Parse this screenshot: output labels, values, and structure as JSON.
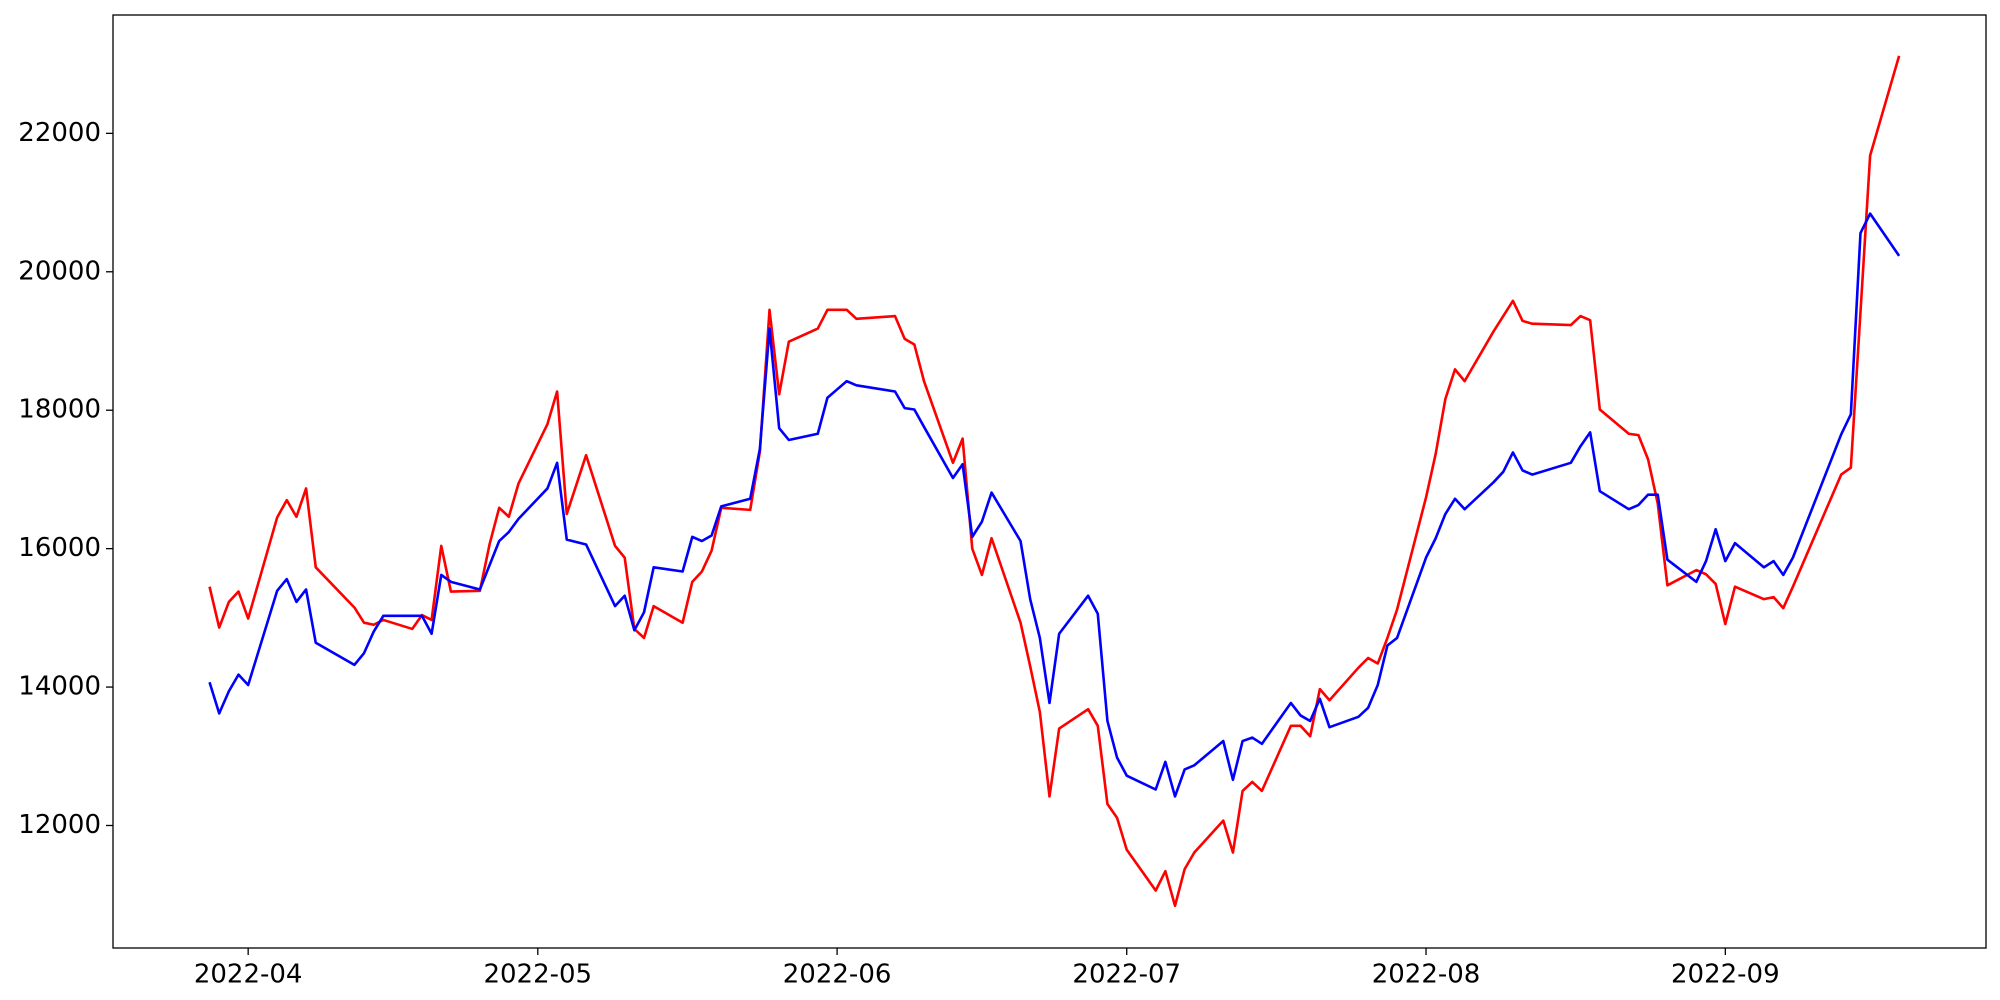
{
  "chart_data": {
    "type": "line",
    "x": [
      "2022-03-28",
      "2022-03-29",
      "2022-03-30",
      "2022-03-31",
      "2022-04-01",
      "2022-04-04",
      "2022-04-05",
      "2022-04-06",
      "2022-04-07",
      "2022-04-08",
      "2022-04-12",
      "2022-04-13",
      "2022-04-14",
      "2022-04-15",
      "2022-04-18",
      "2022-04-19",
      "2022-04-20",
      "2022-04-21",
      "2022-04-22",
      "2022-04-25",
      "2022-04-26",
      "2022-04-27",
      "2022-04-28",
      "2022-04-29",
      "2022-05-02",
      "2022-05-03",
      "2022-05-04",
      "2022-05-06",
      "2022-05-09",
      "2022-05-10",
      "2022-05-11",
      "2022-05-12",
      "2022-05-13",
      "2022-05-16",
      "2022-05-17",
      "2022-05-18",
      "2022-05-19",
      "2022-05-20",
      "2022-05-23",
      "2022-05-24",
      "2022-05-25",
      "2022-05-26",
      "2022-05-27",
      "2022-05-30",
      "2022-05-31",
      "2022-06-01",
      "2022-06-02",
      "2022-06-03",
      "2022-06-07",
      "2022-06-08",
      "2022-06-09",
      "2022-06-10",
      "2022-06-13",
      "2022-06-14",
      "2022-06-15",
      "2022-06-16",
      "2022-06-17",
      "2022-06-20",
      "2022-06-21",
      "2022-06-22",
      "2022-06-23",
      "2022-06-24",
      "2022-06-27",
      "2022-06-28",
      "2022-06-29",
      "2022-06-30",
      "2022-07-01",
      "2022-07-04",
      "2022-07-05",
      "2022-07-06",
      "2022-07-07",
      "2022-07-08",
      "2022-07-11",
      "2022-07-12",
      "2022-07-13",
      "2022-07-14",
      "2022-07-15",
      "2022-07-18",
      "2022-07-19",
      "2022-07-20",
      "2022-07-21",
      "2022-07-22",
      "2022-07-25",
      "2022-07-26",
      "2022-07-27",
      "2022-07-28",
      "2022-07-29",
      "2022-08-01",
      "2022-08-02",
      "2022-08-03",
      "2022-08-04",
      "2022-08-05",
      "2022-08-08",
      "2022-08-09",
      "2022-08-10",
      "2022-08-11",
      "2022-08-12",
      "2022-08-16",
      "2022-08-17",
      "2022-08-18",
      "2022-08-19",
      "2022-08-22",
      "2022-08-23",
      "2022-08-24",
      "2022-08-25",
      "2022-08-26",
      "2022-08-29",
      "2022-08-30",
      "2022-08-31",
      "2022-09-01",
      "2022-09-02",
      "2022-09-05",
      "2022-09-06",
      "2022-09-07",
      "2022-09-08",
      "2022-09-13",
      "2022-09-14",
      "2022-09-15",
      "2022-09-16",
      "2022-09-19"
    ],
    "series": [
      {
        "color": "#ff0000",
        "values": [
          15450,
          14860,
          15230,
          15380,
          14990,
          16450,
          16700,
          16460,
          16870,
          15730,
          15150,
          14930,
          14900,
          14970,
          14840,
          15040,
          14970,
          16040,
          15380,
          15390,
          16060,
          16590,
          16460,
          16940,
          17800,
          18270,
          16500,
          17350,
          16040,
          15870,
          14840,
          14710,
          15170,
          14930,
          15520,
          15670,
          15970,
          16590,
          16560,
          17400,
          19450,
          18230,
          18990,
          19180,
          19450,
          19450,
          19450,
          19320,
          19360,
          19030,
          18950,
          18420,
          17240,
          17590,
          16000,
          15620,
          16150,
          14930,
          14300,
          13640,
          12420,
          13400,
          13680,
          13440,
          12310,
          12110,
          11650,
          11060,
          11340,
          10840,
          11370,
          11610,
          12070,
          11610,
          12500,
          12630,
          12500,
          13440,
          13440,
          13290,
          13970,
          13810,
          14280,
          14420,
          14340,
          14710,
          15120,
          16740,
          17370,
          18160,
          18590,
          18420,
          19140,
          19360,
          19580,
          19290,
          19250,
          19230,
          19360,
          19300,
          18010,
          17660,
          17640,
          17290,
          16650,
          15470,
          15690,
          15630,
          15490,
          14910,
          15450,
          15270,
          15300,
          15140,
          15450,
          17070,
          17170,
          19420,
          21680,
          23120
        ]
      },
      {
        "color": "#0000ff",
        "values": [
          14070,
          13620,
          13940,
          14180,
          14030,
          15390,
          15560,
          15230,
          15410,
          14640,
          14320,
          14490,
          14800,
          15030,
          15030,
          15030,
          14770,
          15620,
          15520,
          15410,
          15760,
          16110,
          16240,
          16430,
          16870,
          17240,
          16130,
          16060,
          15170,
          15320,
          14820,
          15080,
          15730,
          15670,
          16170,
          16110,
          16190,
          16610,
          16720,
          17440,
          19180,
          17740,
          17570,
          17660,
          18180,
          18300,
          18420,
          18360,
          18270,
          18030,
          18010,
          17760,
          17020,
          17220,
          16170,
          16390,
          16810,
          16110,
          15270,
          14710,
          13770,
          14770,
          15320,
          15060,
          13510,
          12980,
          12720,
          12520,
          12920,
          12420,
          12810,
          12870,
          13220,
          12660,
          13220,
          13270,
          13180,
          13770,
          13590,
          13510,
          13830,
          13420,
          13570,
          13700,
          14030,
          14600,
          14710,
          15870,
          16150,
          16500,
          16720,
          16570,
          16960,
          17110,
          17390,
          17130,
          17070,
          17240,
          17480,
          17680,
          16830,
          16570,
          16630,
          16780,
          16780,
          15840,
          15520,
          15820,
          16280,
          15820,
          16080,
          15730,
          15820,
          15620,
          15870,
          17650,
          17940,
          20560,
          20840,
          20230
        ]
      }
    ],
    "xlim": [
      "2022-03-18",
      "2022-09-28"
    ],
    "xticks": [
      {
        "value": "2022-04-01",
        "label": "2022-04"
      },
      {
        "value": "2022-05-01",
        "label": "2022-05"
      },
      {
        "value": "2022-06-01",
        "label": "2022-06"
      },
      {
        "value": "2022-07-01",
        "label": "2022-07"
      },
      {
        "value": "2022-08-01",
        "label": "2022-08"
      },
      {
        "value": "2022-09-01",
        "label": "2022-09"
      }
    ],
    "ylim": [
      10230,
      23710
    ],
    "yticks": [
      12000,
      14000,
      16000,
      18000,
      20000,
      22000
    ]
  }
}
